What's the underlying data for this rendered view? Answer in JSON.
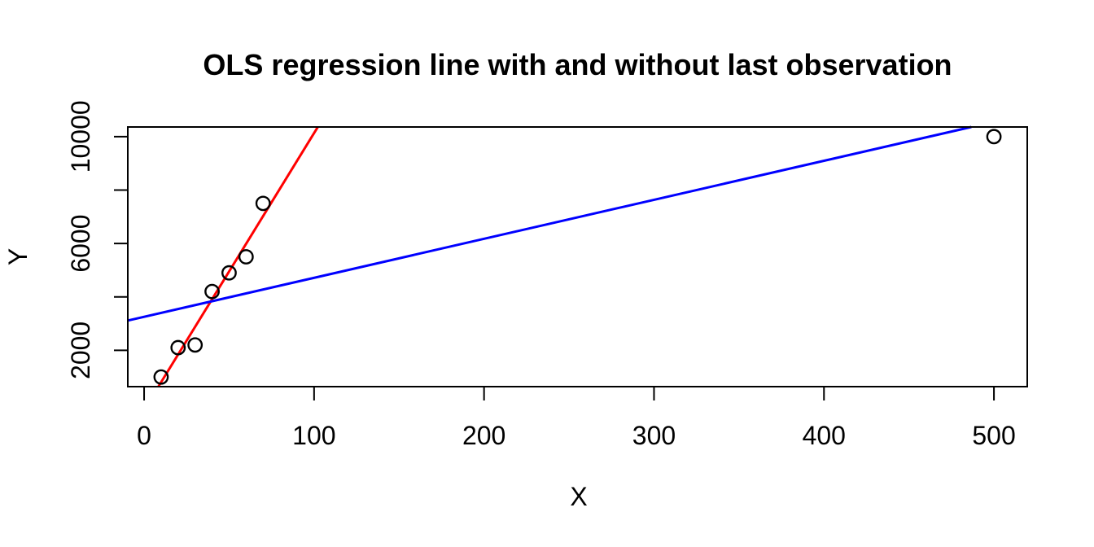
{
  "window": {
    "background_color": "#FFFFFF",
    "foreground_color": "#000000"
  },
  "chart_data": {
    "type": "scatter",
    "title": "OLS regression line with and without last observation",
    "xlabel": "X",
    "ylabel": "Y",
    "xlim": [
      -9.6,
      519.6
    ],
    "ylim": [
      640,
      10360
    ],
    "x_ticks": [
      0,
      100,
      200,
      300,
      400,
      500
    ],
    "y_ticks": [
      2000,
      4000,
      6000,
      8000,
      10000
    ],
    "y_tick_labels": [
      "2000",
      "",
      "6000",
      "",
      "10000"
    ],
    "grid": false,
    "legend": "none",
    "points": {
      "marker": "open-circle",
      "color": "#000000",
      "x": [
        10,
        20,
        30,
        40,
        50,
        60,
        70,
        500
      ],
      "y": [
        1000,
        2100,
        2200,
        4200,
        4900,
        5500,
        7500,
        10000
      ]
    },
    "lines": [
      {
        "name": "ols-fit-without-last-observation",
        "color": "#FF0000",
        "slope": 103.6,
        "intercept": -228.6
      },
      {
        "name": "ols-fit-all-observations",
        "color": "#0000FF",
        "slope": 14.6,
        "intercept": 3254
      }
    ]
  }
}
